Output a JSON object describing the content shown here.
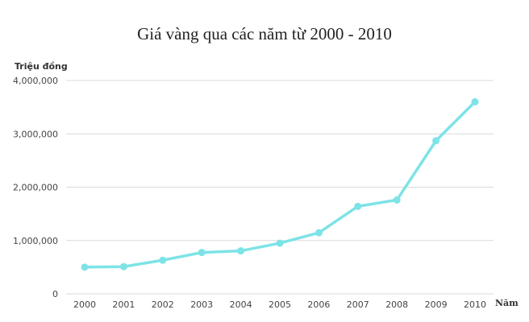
{
  "chart_data": {
    "type": "line",
    "title": "Giá vàng qua các năm từ 2000 - 2010",
    "xlabel": "Năm",
    "ylabel": "Triệu đồng",
    "categories": [
      "2000",
      "2001",
      "2002",
      "2003",
      "2004",
      "2005",
      "2006",
      "2007",
      "2008",
      "2009",
      "2010"
    ],
    "series": [
      {
        "values": [
          500000,
          510000,
          630000,
          775000,
          805000,
          950000,
          1145000,
          1640000,
          1760000,
          2870000,
          3600000
        ]
      }
    ],
    "ylim": [
      0,
      4000000
    ],
    "yticks": [
      0,
      1000000,
      2000000,
      3000000,
      4000000
    ],
    "ytick_labels": [
      "0",
      "1,000,000",
      "2,000,000",
      "3,000,000",
      "4,000,000"
    ],
    "grid": true,
    "line_color": "#7de3e6",
    "grid_color": "#d9d9d9",
    "legend": "none"
  }
}
